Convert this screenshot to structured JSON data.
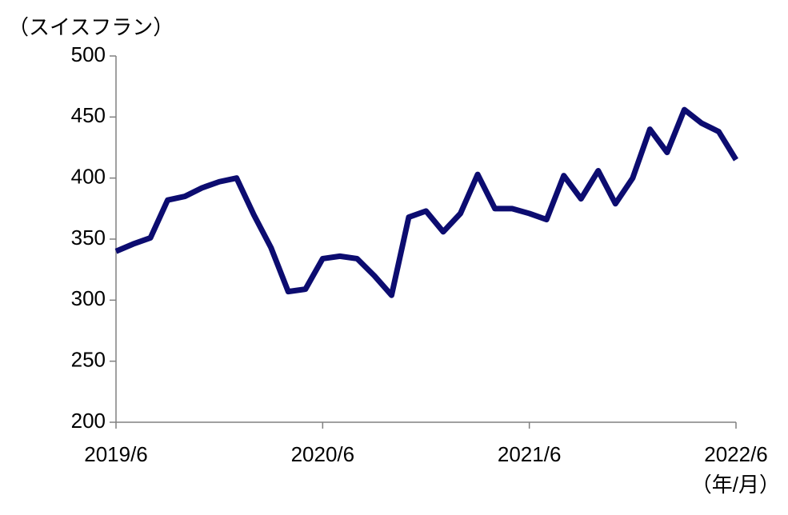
{
  "chart_data": {
    "type": "line",
    "y_label": "（スイスフラン）",
    "x_label": "（年/月）",
    "categories": [
      "2019/6",
      null,
      null,
      null,
      null,
      null,
      null,
      null,
      null,
      null,
      null,
      null,
      "2020/6",
      null,
      null,
      null,
      null,
      null,
      null,
      null,
      null,
      null,
      null,
      null,
      "2021/6",
      null,
      null,
      null,
      null,
      null,
      null,
      null,
      null,
      null,
      null,
      null,
      "2022/6"
    ],
    "series": [
      {
        "color": "#0c0c70",
        "values": [
          340,
          346,
          351,
          382,
          385,
          392,
          397,
          400,
          370,
          343,
          307,
          309,
          334,
          336,
          334,
          320,
          304,
          368,
          373,
          356,
          371,
          403,
          375,
          375,
          371,
          366,
          402,
          383,
          406,
          379,
          400,
          440,
          421,
          456,
          445,
          438,
          415
        ]
      }
    ],
    "ylim": [
      200,
      500
    ],
    "yticks": [
      200,
      250,
      300,
      350,
      400,
      450,
      500
    ],
    "grid": false
  }
}
